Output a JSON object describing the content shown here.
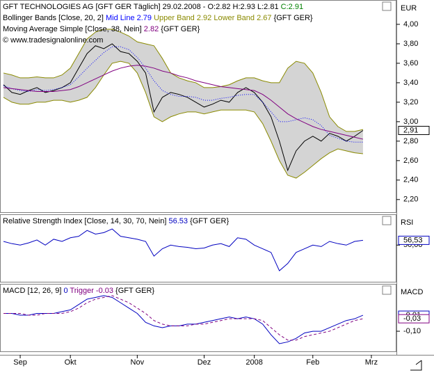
{
  "chart_data": [
    {
      "type": "line",
      "title": "GFT TECHNOLOGIES AG [GFT GER  Täglich] 29.02.2008 - O:2.82 H:2.93 L:2.81 ",
      "title_close": "C:2.91",
      "title_close_color": "#008000",
      "legend": [
        [
          {
            "text": "Bollinger Bands [Close, 20, 2] ",
            "color": "#000000"
          },
          {
            "text": "Mid Line 2.79 ",
            "color": "#0000ff"
          },
          {
            "text": "Upper Band 2.92 ",
            "color": "#8a8a00"
          },
          {
            "text": "Lower Band 2.67 ",
            "color": "#8a8a00"
          },
          {
            "text": "{GFT GER}",
            "color": "#000000"
          }
        ],
        [
          {
            "text": "Moving Average Simple [Close, 38, Nein] ",
            "color": "#000000"
          },
          {
            "text": "2.82 ",
            "color": "#800080"
          },
          {
            "text": "{GFT GER}",
            "color": "#000000"
          }
        ],
        [
          {
            "text": "© www.tradesignalonline.com",
            "color": "#000000"
          }
        ]
      ],
      "axis_label": "EUR",
      "band": [
        1,
        3
      ],
      "band_color": "#d4d4d4",
      "x": [
        0,
        1,
        2,
        3,
        4,
        5,
        6,
        7,
        8,
        9,
        10,
        11,
        12,
        13,
        14,
        15,
        16,
        17,
        18,
        19,
        20,
        21,
        22,
        23,
        24,
        25,
        26,
        27,
        28,
        29,
        30,
        31,
        32,
        33,
        34,
        35,
        36,
        37,
        38,
        39,
        40,
        41,
        42,
        43
      ],
      "xlim": [
        0,
        47
      ],
      "ylim": [
        2.07,
        4.25
      ],
      "yticks": [
        {
          "value": 2.2,
          "label": "2,20"
        },
        {
          "value": 2.4,
          "label": "2,40"
        },
        {
          "value": 2.6,
          "label": "2,60"
        },
        {
          "value": 2.8,
          "label": "2,80"
        },
        {
          "value": 3.0,
          "label": "3,00"
        },
        {
          "value": 3.2,
          "label": "3,20"
        },
        {
          "value": 3.4,
          "label": "3,40"
        },
        {
          "value": 3.6,
          "label": "3,60"
        },
        {
          "value": 3.8,
          "label": "3,80"
        },
        {
          "value": 4.0,
          "label": "4,00"
        }
      ],
      "series": [
        {
          "color": "#000000",
          "style": "solid",
          "last_label": "2,91",
          "values": [
            3.38,
            3.3,
            3.28,
            3.32,
            3.35,
            3.3,
            3.32,
            3.35,
            3.4,
            3.55,
            3.7,
            3.78,
            3.75,
            3.8,
            3.72,
            3.7,
            3.62,
            3.5,
            3.1,
            3.25,
            3.3,
            3.28,
            3.25,
            3.2,
            3.15,
            3.18,
            3.22,
            3.2,
            3.3,
            3.35,
            3.3,
            3.2,
            3.05,
            2.8,
            2.5,
            2.7,
            2.8,
            2.85,
            2.8,
            2.88,
            2.85,
            2.8,
            2.85,
            2.91
          ]
        },
        {
          "color": "#8a8a00",
          "style": "solid",
          "values": [
            3.5,
            3.48,
            3.45,
            3.45,
            3.46,
            3.45,
            3.45,
            3.48,
            3.55,
            3.7,
            3.85,
            3.92,
            3.95,
            3.95,
            3.92,
            3.88,
            3.82,
            3.8,
            3.78,
            3.65,
            3.5,
            3.45,
            3.42,
            3.4,
            3.35,
            3.35,
            3.36,
            3.38,
            3.42,
            3.45,
            3.45,
            3.42,
            3.4,
            3.4,
            3.55,
            3.62,
            3.6,
            3.5,
            3.3,
            3.05,
            2.95,
            2.9,
            2.9,
            2.92
          ]
        },
        {
          "color": "#0000ff",
          "style": "dotted",
          "values": [
            3.37,
            3.34,
            3.32,
            3.31,
            3.33,
            3.32,
            3.33,
            3.35,
            3.38,
            3.46,
            3.55,
            3.63,
            3.71,
            3.77,
            3.77,
            3.74,
            3.66,
            3.55,
            3.42,
            3.32,
            3.28,
            3.26,
            3.26,
            3.25,
            3.22,
            3.22,
            3.24,
            3.25,
            3.27,
            3.28,
            3.28,
            3.2,
            3.1,
            3.0,
            3.0,
            3.02,
            3.04,
            3.02,
            2.96,
            2.86,
            2.83,
            2.8,
            2.79,
            2.79
          ]
        },
        {
          "color": "#8a8a00",
          "style": "solid",
          "values": [
            3.25,
            3.2,
            3.18,
            3.18,
            3.2,
            3.2,
            3.22,
            3.22,
            3.2,
            3.22,
            3.25,
            3.35,
            3.48,
            3.6,
            3.62,
            3.6,
            3.5,
            3.3,
            3.05,
            3.0,
            3.05,
            3.08,
            3.1,
            3.1,
            3.08,
            3.1,
            3.12,
            3.12,
            3.12,
            3.12,
            3.1,
            2.98,
            2.8,
            2.6,
            2.45,
            2.42,
            2.48,
            2.55,
            2.62,
            2.68,
            2.72,
            2.7,
            2.68,
            2.67
          ]
        },
        {
          "color": "#800080",
          "style": "solid",
          "values": [
            3.35,
            3.34,
            3.33,
            3.32,
            3.31,
            3.31,
            3.31,
            3.32,
            3.33,
            3.36,
            3.4,
            3.44,
            3.48,
            3.52,
            3.55,
            3.57,
            3.58,
            3.57,
            3.55,
            3.52,
            3.5,
            3.47,
            3.45,
            3.42,
            3.4,
            3.38,
            3.36,
            3.35,
            3.34,
            3.33,
            3.32,
            3.28,
            3.22,
            3.15,
            3.08,
            3.03,
            2.99,
            2.95,
            2.92,
            2.9,
            2.88,
            2.86,
            2.84,
            2.82
          ]
        }
      ]
    },
    {
      "type": "line",
      "legend": [
        [
          {
            "text": "Relative Strength Index [Close, 14, 30, 70, Nein] ",
            "color": "#000000"
          },
          {
            "text": "56.53 ",
            "color": "#0000c0"
          },
          {
            "text": "{GFT GER}",
            "color": "#000000"
          }
        ]
      ],
      "axis_label": "RSI",
      "x": [
        0,
        1,
        2,
        3,
        4,
        5,
        6,
        7,
        8,
        9,
        10,
        11,
        12,
        13,
        14,
        15,
        16,
        17,
        18,
        19,
        20,
        21,
        22,
        23,
        24,
        25,
        26,
        27,
        28,
        29,
        30,
        31,
        32,
        33,
        34,
        35,
        36,
        37,
        38,
        39,
        40,
        41,
        42,
        43
      ],
      "xlim": [
        0,
        47
      ],
      "ylim": [
        0,
        92
      ],
      "yticks": [
        {
          "value": 50,
          "label": "50,00"
        }
      ],
      "series": [
        {
          "color": "#0000c0",
          "style": "solid",
          "last_label": "56,53",
          "values": [
            55,
            52,
            50,
            53,
            57,
            50,
            58,
            55,
            60,
            62,
            70,
            65,
            67,
            72,
            62,
            60,
            58,
            55,
            35,
            45,
            50,
            48,
            47,
            45,
            46,
            50,
            52,
            48,
            60,
            58,
            50,
            45,
            40,
            15,
            25,
            40,
            45,
            50,
            48,
            55,
            52,
            50,
            55,
            56.53
          ]
        }
      ]
    },
    {
      "type": "line",
      "legend": [
        [
          {
            "text": "MACD [12, 26, 9] ",
            "color": "#000000"
          },
          {
            "text": "0 ",
            "color": "#0000c0"
          },
          {
            "text": "Trigger -0.03 ",
            "color": "#800080"
          },
          {
            "text": "{GFT GER}",
            "color": "#000000"
          }
        ]
      ],
      "axis_label": "MACD",
      "x": [
        0,
        1,
        2,
        3,
        4,
        5,
        6,
        7,
        8,
        9,
        10,
        11,
        12,
        13,
        14,
        15,
        16,
        17,
        18,
        19,
        20,
        21,
        22,
        23,
        24,
        25,
        26,
        27,
        28,
        29,
        30,
        31,
        32,
        33,
        34,
        35,
        36,
        37,
        38,
        39,
        40,
        41,
        42,
        43
      ],
      "xlim": [
        0,
        47
      ],
      "ylim": [
        -0.213,
        0.166
      ],
      "yticks": [
        {
          "value": -0.1,
          "label": "-0,10"
        }
      ],
      "xticks": [
        {
          "value": 2,
          "label": "Sep"
        },
        {
          "value": 8,
          "label": "Okt"
        },
        {
          "value": 16,
          "label": "Nov"
        },
        {
          "value": 24,
          "label": "Dez"
        },
        {
          "value": 30,
          "label": "2008"
        },
        {
          "value": 37,
          "label": "Feb"
        },
        {
          "value": 44,
          "label": "Mrz"
        }
      ],
      "series": [
        {
          "color": "#0000c0",
          "style": "solid",
          "last_label": "-0,01",
          "values": [
            0.0,
            0.0,
            -0.01,
            -0.01,
            0,
            0,
            0,
            0.01,
            0.02,
            0.05,
            0.08,
            0.09,
            0.1,
            0.09,
            0.06,
            0.03,
            0,
            -0.05,
            -0.07,
            -0.08,
            -0.07,
            -0.07,
            -0.06,
            -0.06,
            -0.05,
            -0.04,
            -0.03,
            -0.02,
            -0.03,
            -0.02,
            -0.03,
            -0.06,
            -0.12,
            -0.17,
            -0.16,
            -0.14,
            -0.11,
            -0.1,
            -0.1,
            -0.08,
            -0.06,
            -0.04,
            -0.03,
            -0.01
          ]
        },
        {
          "color": "#800080",
          "style": "dashed",
          "last_label": "-0,03",
          "values": [
            0.0,
            0.0,
            0.0,
            -0.01,
            -0.01,
            0,
            0,
            0,
            0.01,
            0.03,
            0.06,
            0.08,
            0.09,
            0.1,
            0.08,
            0.06,
            0.03,
            0,
            -0.04,
            -0.06,
            -0.07,
            -0.07,
            -0.07,
            -0.06,
            -0.06,
            -0.05,
            -0.04,
            -0.03,
            -0.03,
            -0.03,
            -0.03,
            -0.04,
            -0.08,
            -0.12,
            -0.15,
            -0.15,
            -0.13,
            -0.12,
            -0.11,
            -0.1,
            -0.08,
            -0.06,
            -0.04,
            -0.03
          ]
        }
      ]
    }
  ]
}
